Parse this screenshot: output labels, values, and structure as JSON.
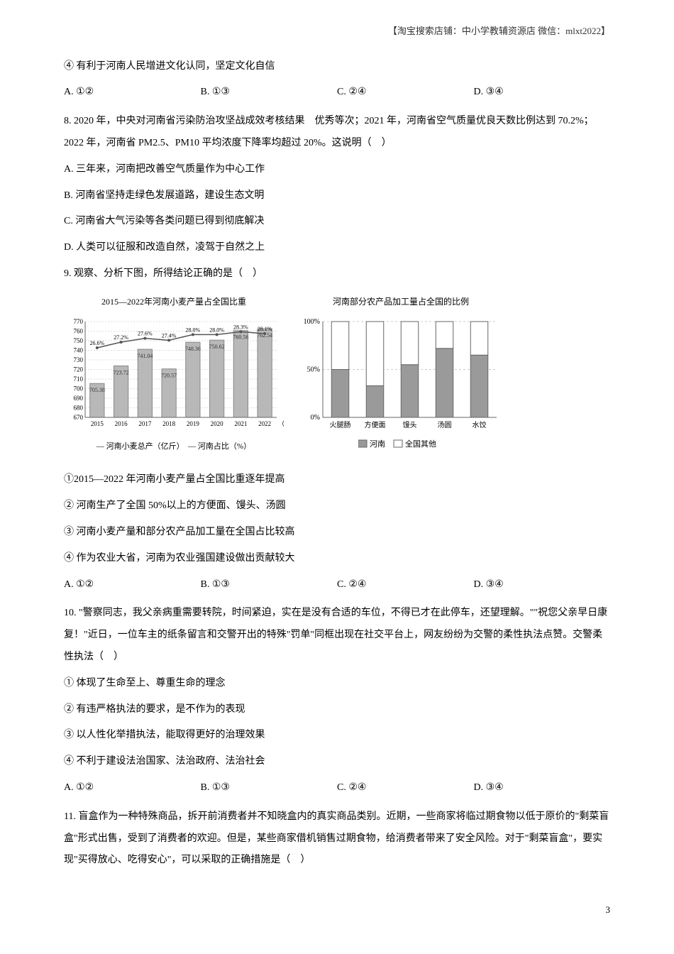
{
  "header": {
    "note": "【淘宝搜索店铺：中小学教辅资源店 微信：mlxt2022】"
  },
  "q7_continuation": {
    "statement4": "④ 有利于河南人民增进文化认同，坚定文化自信",
    "optA": "A. ①②",
    "optB": "B. ①③",
    "optC": "C. ②④",
    "optD": "D. ③④"
  },
  "q8": {
    "stem": "8. 2020 年，中央对河南省污染防治攻坚战成效考核结果　优秀等次；2021 年，河南省空气质量优良天数比例达到 70.2%；2022 年，河南省 PM2.5、PM10 平均浓度下降率均超过 20%。这说明（　）",
    "optA": "A. 三年来，河南把改善空气质量作为中心工作",
    "optB": "B. 河南省坚持走绿色发展道路，建设生态文明",
    "optC": "C. 河南省大气污染等各类问题已得到彻底解决",
    "optD": "D. 人类可以征服和改造自然，凌驾于自然之上"
  },
  "q9": {
    "stem": "9. 观察、分析下图，所得结论正确的是（　）",
    "chart1": {
      "type": "combo",
      "title": "2015—2022年河南小麦产量占全国比重",
      "legend": "— 河南小麦总产（亿斤）　— 河南占比（%）",
      "years": [
        "2015",
        "2016",
        "2017",
        "2018",
        "2019",
        "2020",
        "2021",
        "2022"
      ],
      "yield": [
        705.38,
        723.72,
        741.04,
        720.57,
        748.36,
        750.62,
        760.56,
        762.54
      ],
      "ratio": [
        26.6,
        27.2,
        27.6,
        27.4,
        28.0,
        28.0,
        28.3,
        28.1
      ],
      "ratio_labels": [
        "26.6%",
        "27.2%",
        "27.6%",
        "27.4%",
        "28.0%",
        "28.0%",
        "28.3%",
        "28.1%"
      ],
      "y_left_min": 670,
      "y_left_max": 770,
      "y_left_step": 10,
      "bar_color": "#b8b8b8",
      "line_color": "#555555",
      "bg": "#ffffff",
      "grid_color": "#dddddd",
      "label_fontsize": 9
    },
    "chart2": {
      "type": "stacked_bar",
      "title": "河南部分农产品加工量占全国的比例",
      "categories": [
        "火腿肠",
        "方便面",
        "馒头",
        "汤圆",
        "水饺"
      ],
      "henan": [
        50,
        33,
        55,
        72,
        65
      ],
      "other": [
        50,
        67,
        45,
        28,
        35
      ],
      "henan_label": "河南",
      "other_label": "全国其他",
      "henan_color": "#9a9a9a",
      "other_color": "#ffffff",
      "border_color": "#666666",
      "y_ticks": [
        "0%",
        "50%",
        "100%"
      ],
      "bg": "#ffffff",
      "grid_color": "#cccccc",
      "label_fontsize": 10
    },
    "s1": "①2015—2022 年河南小麦产量占全国比重逐年提高",
    "s2": "② 河南生产了全国 50%以上的方便面、馒头、汤圆",
    "s3": "③ 河南小麦产量和部分农产品加工量在全国占比较高",
    "s4": "④ 作为农业大省，河南为农业强国建设做出贡献较大",
    "optA": "A. ①②",
    "optB": "B. ①③",
    "optC": "C. ②④",
    "optD": "D. ③④"
  },
  "q10": {
    "stem": "10. \"警察同志，我父亲病重需要转院，时间紧迫，实在是没有合适的车位，不得已才在此停车，还望理解。\"\"祝您父亲早日康复！\"近日，一位车主的纸条留言和交警开出的特殊\"罚单\"同框出现在社交平台上，网友纷纷为交警的柔性执法点赞。交警柔性执法（　）",
    "s1": "① 体现了生命至上、尊重生命的理念",
    "s2": "② 有违严格执法的要求，是不作为的表现",
    "s3": "③ 以人性化举措执法，能取得更好的治理效果",
    "s4": "④ 不利于建设法治国家、法治政府、法治社会",
    "optA": "A. ①②",
    "optB": "B. ①③",
    "optC": "C. ②④",
    "optD": "D. ③④"
  },
  "q11": {
    "stem": "11. 盲盒作为一种特殊商品，拆开前消费者并不知晓盒内的真实商品类别。近期，一些商家将临过期食物以低于原价的\"剩菜盲盒\"形式出售，受到了消费者的欢迎。但是，某些商家借机销售过期食物，给消费者带来了安全风险。对于\"剩菜盲盒\"，要实现\"买得放心、吃得安心\"，可以采取的正确措施是（　）"
  },
  "page_number": "3"
}
